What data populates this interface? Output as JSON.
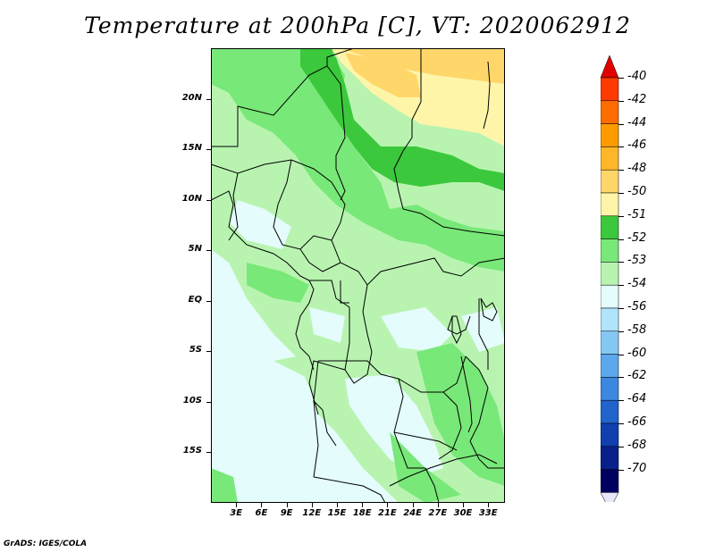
{
  "title": "Temperature at 200hPa [C], VT: 2020062912",
  "credit": "GrADS: IGES/COLA",
  "lat_labels": [
    "20N",
    "15N",
    "10N",
    "5N",
    "EQ",
    "5S",
    "10S",
    "15S"
  ],
  "lat_values": [
    20,
    15,
    10,
    5,
    0,
    -5,
    -10,
    -15
  ],
  "lon_labels": [
    "3E",
    "6E",
    "9E",
    "12E",
    "15E",
    "18E",
    "21E",
    "24E",
    "27E",
    "30E",
    "33E"
  ],
  "lon_values": [
    3,
    6,
    9,
    12,
    15,
    18,
    21,
    24,
    27,
    30,
    33
  ],
  "map_extent": {
    "lon_min": 0,
    "lon_max": 35,
    "lat_min": -20,
    "lat_max": 25
  },
  "colorbar": {
    "labels": [
      "-40",
      "-42",
      "-44",
      "-46",
      "-48",
      "-50",
      "-51",
      "-52",
      "-53",
      "-54",
      "-56",
      "-58",
      "-60",
      "-62",
      "-64",
      "-66",
      "-68",
      "-70"
    ],
    "colors": [
      "#f0ff0000",
      "#ff3a00",
      "#ff6c00",
      "#ff9a00",
      "#ffb628",
      "#ffd66a",
      "#fff5a8",
      "#3cc83c",
      "#78e878",
      "#b8f4b0",
      "#e4fcfc",
      "#b0e4fc",
      "#86c8f4",
      "#5ca8ec",
      "#3c88e0",
      "#2064cc",
      "#1040b0",
      "#08208a",
      "#000060",
      "#e6e6fa"
    ],
    "top_color": "#e00000",
    "bottom_color": "#e6e6fa"
  },
  "legend_colors": {
    "very_cold": "#e4fcfc",
    "cold": "#b8f4b0",
    "mid": "#78e878",
    "warm": "#3cc83c",
    "hot": "#ffd66a"
  }
}
